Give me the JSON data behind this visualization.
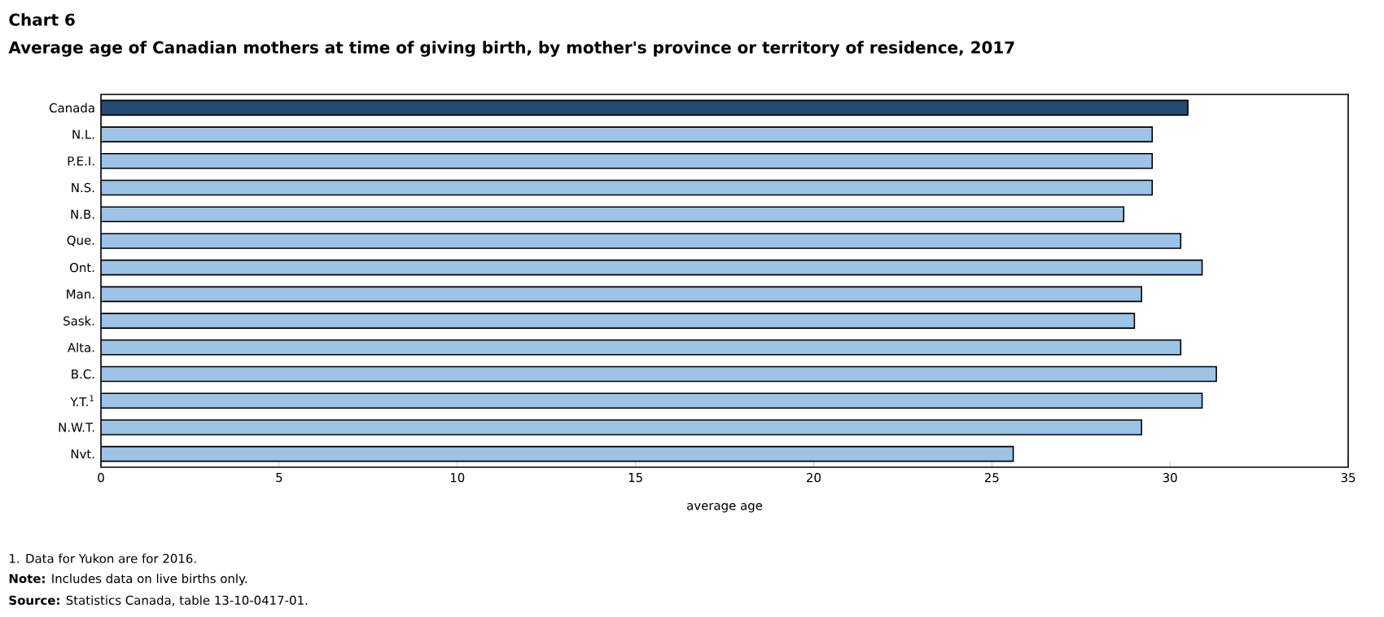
{
  "chart_data": {
    "type": "bar",
    "orientation": "horizontal",
    "title": "Chart 6",
    "subtitle": "Average age of Canadian mothers at time of giving birth, by mother's province or territory of residence, 2017",
    "categories": [
      "Canada",
      "N.L.",
      "P.E.I.",
      "N.S.",
      "N.B.",
      "Que.",
      "Ont.",
      "Man.",
      "Sask.",
      "Alta.",
      "B.C.",
      "Y.T.$^{1}$",
      "N.W.T.",
      "Nvt."
    ],
    "values": [
      30.5,
      29.5,
      29.5,
      29.5,
      28.7,
      30.3,
      30.9,
      29.2,
      29.0,
      30.3,
      31.3,
      30.9,
      29.2,
      25.6
    ],
    "colors": [
      "#254a73",
      "#9dc3e6",
      "#9dc3e6",
      "#9dc3e6",
      "#9dc3e6",
      "#9dc3e6",
      "#9dc3e6",
      "#9dc3e6",
      "#9dc3e6",
      "#9dc3e6",
      "#9dc3e6",
      "#9dc3e6",
      "#9dc3e6",
      "#9dc3e6"
    ],
    "xlabel": "average age",
    "xlim": [
      0,
      35
    ],
    "xticks": [
      0,
      5,
      10,
      15,
      20,
      25,
      30,
      35
    ],
    "annotations": [
      "1. Data for Yukon are for 2016.",
      "**Note:** Includes data on live births only.",
      "**Source:** Statistics Canada, table 13-10-0417-01."
    ]
  }
}
